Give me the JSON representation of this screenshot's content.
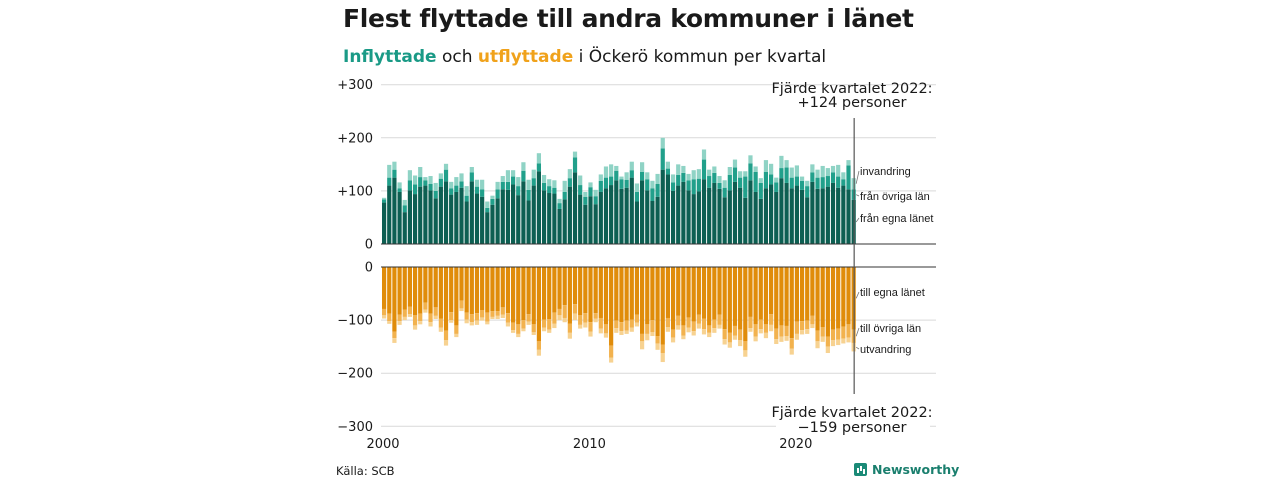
{
  "title": "Flest flyttade till andra kommuner i länet",
  "subtitle": {
    "part_in": "Inflyttade",
    "part_mid": " och ",
    "part_out": "utflyttade",
    "part_rest": " i Öckerö kommun per kvartal"
  },
  "source": "Källa: SCB",
  "brand": "Newsworthy",
  "colors": {
    "in_lan": "#0d5f52",
    "in_ovriga": "#21a08b",
    "in_invandring": "#8fd3c5",
    "out_lan": "#e08c0a",
    "out_ovriga": "#f2b24e",
    "out_utvandring": "#f7d291",
    "grid": "#d9d9d9",
    "axis": "#333333"
  },
  "chart_data": {
    "type": "bar",
    "stacked": true,
    "diverging": true,
    "quarters_start": "2000 Q1",
    "quarters_end": "2022 Q4",
    "xticks": [
      "2000",
      "2010",
      "2020"
    ],
    "yticks": [
      "+300",
      "+200",
      "+100",
      "0",
      "0",
      "−100",
      "−200",
      "−300"
    ],
    "ylim_in": [
      0,
      300
    ],
    "ylim_out": [
      -300,
      0
    ],
    "grid": true,
    "annotations": {
      "top": [
        "Fjärde kvartalet 2022:",
        "+124 personer"
      ],
      "bottom": [
        "Fjärde kvartalet 2022:",
        "−159 personer"
      ]
    },
    "in_series": [
      {
        "name": "från egna länet",
        "values": [
          78,
          110,
          125,
          98,
          60,
          101,
          94,
          108,
          110,
          101,
          86,
          108,
          118,
          93,
          98,
          106,
          80,
          118,
          95,
          89,
          60,
          74,
          86,
          103,
          102,
          112,
          92,
          118,
          82,
          110,
          137,
          101,
          96,
          95,
          66,
          84,
          108,
          135,
          93,
          74,
          90,
          75,
          98,
          105,
          111,
          120,
          104,
          106,
          125,
          80,
          120,
          101,
          81,
          89,
          140,
          131,
          100,
          110,
          117,
          101,
          94,
          99,
          122,
          106,
          115,
          104,
          88,
          101,
          117,
          106,
          87,
          120,
          98,
          85,
          105,
          112,
          98,
          124,
          115,
          105,
          110,
          102,
          88,
          117,
          104,
          105,
          108,
          115,
          106,
          110,
          103,
          83
        ]
      },
      {
        "name": "från övriga län",
        "values": [
          6,
          15,
          15,
          7,
          13,
          19,
          18,
          18,
          10,
          12,
          14,
          15,
          22,
          12,
          12,
          12,
          11,
          17,
          13,
          14,
          8,
          11,
          17,
          14,
          15,
          15,
          17,
          20,
          20,
          14,
          15,
          14,
          13,
          11,
          11,
          14,
          16,
          28,
          18,
          15,
          17,
          15,
          21,
          20,
          16,
          18,
          18,
          15,
          14,
          18,
          16,
          21,
          24,
          24,
          40,
          11,
          16,
          20,
          17,
          19,
          28,
          24,
          37,
          22,
          19,
          11,
          18,
          29,
          27,
          19,
          40,
          32,
          38,
          30,
          31,
          19,
          18,
          19,
          29,
          20,
          17,
          17,
          21,
          18,
          21,
          21,
          20,
          20,
          21,
          12,
          45,
          20
        ]
      },
      {
        "name": "invandring",
        "values": [
          3,
          24,
          15,
          11,
          10,
          19,
          17,
          19,
          6,
          15,
          15,
          10,
          11,
          12,
          16,
          15,
          18,
          10,
          13,
          18,
          12,
          6,
          14,
          11,
          22,
          12,
          17,
          16,
          19,
          16,
          19,
          15,
          13,
          14,
          8,
          21,
          17,
          11,
          18,
          9,
          9,
          12,
          12,
          21,
          23,
          9,
          5,
          14,
          16,
          16,
          18,
          13,
          14,
          19,
          20,
          13,
          15,
          20,
          13,
          12,
          17,
          18,
          19,
          12,
          12,
          13,
          14,
          15,
          15,
          12,
          10,
          15,
          10,
          9,
          22,
          20,
          9,
          23,
          14,
          19,
          21,
          8,
          10,
          15,
          15,
          21,
          15,
          12,
          22,
          13,
          10,
          21
        ]
      }
    ],
    "out_series": [
      {
        "name": "till egna länet",
        "values": [
          -79,
          -88,
          -122,
          -90,
          -80,
          -75,
          -91,
          -88,
          -67,
          -88,
          -76,
          -97,
          -120,
          -85,
          -110,
          -63,
          -86,
          -89,
          -87,
          -81,
          -86,
          -83,
          -83,
          -76,
          -87,
          -105,
          -108,
          -100,
          -89,
          -108,
          -140,
          -99,
          -98,
          -86,
          -79,
          -72,
          -107,
          -70,
          -91,
          -87,
          -104,
          -87,
          -96,
          -108,
          -148,
          -101,
          -104,
          -101,
          -99,
          -90,
          -126,
          -108,
          -100,
          -130,
          -146,
          -96,
          -118,
          -92,
          -110,
          -95,
          -103,
          -90,
          -97,
          -110,
          -99,
          -90,
          -117,
          -124,
          -111,
          -118,
          -140,
          -94,
          -108,
          -99,
          -108,
          -89,
          -116,
          -110,
          -111,
          -134,
          -103,
          -102,
          -101,
          -92,
          -120,
          -113,
          -131,
          -118,
          -116,
          -112,
          -108,
          -118
        ]
      },
      {
        "name": "till övriga län",
        "values": [
          -12,
          -14,
          -12,
          -12,
          -14,
          -14,
          -19,
          -14,
          -13,
          -16,
          -16,
          -17,
          -18,
          -15,
          -16,
          -15,
          -13,
          -15,
          -14,
          -14,
          -17,
          -11,
          -9,
          -14,
          -18,
          -14,
          -18,
          -16,
          -14,
          -15,
          -16,
          -15,
          -20,
          -21,
          -12,
          -24,
          -17,
          -18,
          -18,
          -18,
          -18,
          -10,
          -20,
          -17,
          -23,
          -14,
          -17,
          -19,
          -15,
          -15,
          -14,
          -18,
          -23,
          -14,
          -16,
          -17,
          -15,
          -18,
          -19,
          -19,
          -18,
          -17,
          -20,
          -14,
          -16,
          -19,
          -19,
          -18,
          -18,
          -20,
          -17,
          -21,
          -23,
          -18,
          -16,
          -20,
          -20,
          -21,
          -19,
          -20,
          -23,
          -17,
          -16,
          -16,
          -20,
          -18,
          -19,
          -20,
          -21,
          -23,
          -25,
          -25
        ]
      },
      {
        "name": "utvandring",
        "values": [
          -6,
          -5,
          -9,
          -7,
          -6,
          -5,
          -8,
          -6,
          -6,
          -8,
          -6,
          -8,
          -10,
          -5,
          -6,
          -5,
          -7,
          -6,
          -8,
          -6,
          -5,
          -4,
          -6,
          -6,
          -7,
          -5,
          -6,
          -5,
          -6,
          -5,
          -11,
          -7,
          -6,
          -8,
          -9,
          -8,
          -11,
          -12,
          -7,
          -9,
          -9,
          -7,
          -9,
          -8,
          -9,
          -9,
          -7,
          -6,
          -8,
          -7,
          -15,
          -12,
          -7,
          -12,
          -17,
          -9,
          -9,
          -8,
          -7,
          -9,
          -8,
          -9,
          -10,
          -8,
          -9,
          -7,
          -10,
          -10,
          -8,
          -11,
          -12,
          -7,
          -9,
          -8,
          -10,
          -12,
          -9,
          -10,
          -9,
          -11,
          -11,
          -8,
          -9,
          -7,
          -13,
          -10,
          -12,
          -11,
          -10,
          -9,
          -9,
          -16
        ]
      }
    ]
  }
}
